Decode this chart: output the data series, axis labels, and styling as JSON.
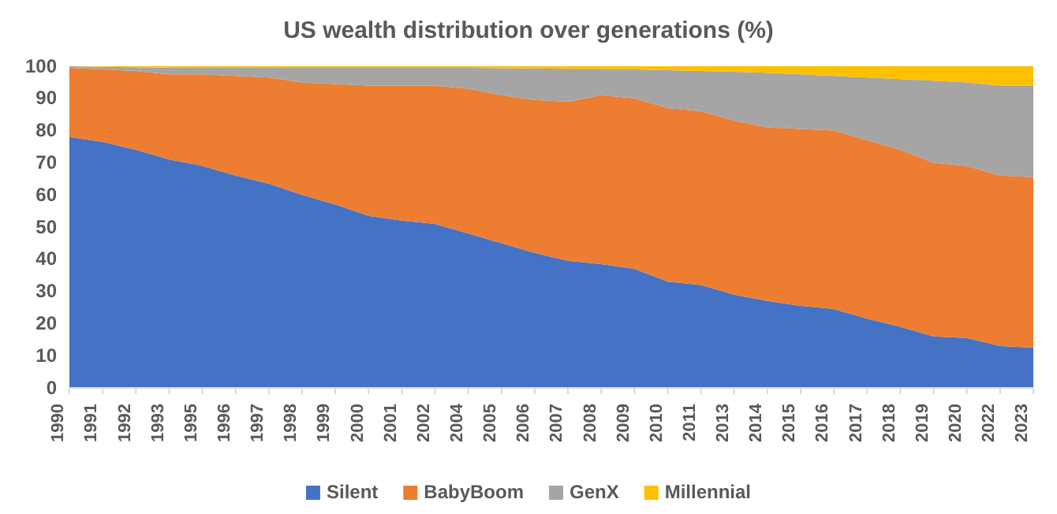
{
  "chart_data": {
    "type": "area",
    "title": "US wealth distribution over generations (%)",
    "stacked": true,
    "categories": [
      "1990",
      "1991",
      "1992",
      "1993",
      "1995",
      "1996",
      "1997",
      "1998",
      "1999",
      "2000",
      "2001",
      "2002",
      "2004",
      "2005",
      "2006",
      "2007",
      "2008",
      "2009",
      "2010",
      "2011",
      "2013",
      "2014",
      "2015",
      "2016",
      "2017",
      "2018",
      "2019",
      "2020",
      "2022",
      "2023"
    ],
    "series": [
      {
        "name": "Silent",
        "color": "#4472c4",
        "values": [
          78,
          76.5,
          74,
          71,
          69,
          66,
          63.5,
          60,
          57,
          53.5,
          52,
          51,
          48,
          45,
          42,
          39.5,
          38.5,
          37,
          33,
          32,
          29,
          27,
          25.5,
          24.5,
          21.5,
          19,
          16,
          15.5,
          13,
          12.5
        ]
      },
      {
        "name": "BabyBoom",
        "color": "#ed7d31",
        "values": [
          21.5,
          22.5,
          24.5,
          26.5,
          28.5,
          31,
          33,
          35,
          37.5,
          40.5,
          42,
          43,
          45,
          46,
          47.5,
          49.5,
          52.5,
          53,
          54,
          54,
          54,
          54,
          55,
          55.5,
          55.5,
          55,
          54,
          53.5,
          53,
          53
        ]
      },
      {
        "name": "GenX",
        "color": "#a5a5a5",
        "values": [
          0.5,
          0.8,
          1.2,
          2.1,
          2,
          2.5,
          3,
          4.5,
          5,
          5.5,
          5.5,
          5.5,
          6.5,
          8.4,
          9.8,
          10.2,
          8.2,
          9,
          11.8,
          12.5,
          15.3,
          17,
          17,
          17,
          19.5,
          22,
          25.5,
          26,
          28,
          28.5
        ]
      },
      {
        "name": "Millennial",
        "color": "#ffc000",
        "values": [
          0,
          0.2,
          0.3,
          0.4,
          0.5,
          0.5,
          0.5,
          0.5,
          0.5,
          0.5,
          0.5,
          0.5,
          0.5,
          0.6,
          0.7,
          0.8,
          0.8,
          1,
          1.2,
          1.5,
          1.7,
          2,
          2.5,
          3,
          3.5,
          4,
          4.5,
          5,
          6,
          6
        ]
      }
    ],
    "ylim": [
      0,
      100
    ],
    "yticks": [
      0,
      10,
      20,
      30,
      40,
      50,
      60,
      70,
      80,
      90,
      100
    ],
    "grid": false,
    "legend": "bottom"
  }
}
